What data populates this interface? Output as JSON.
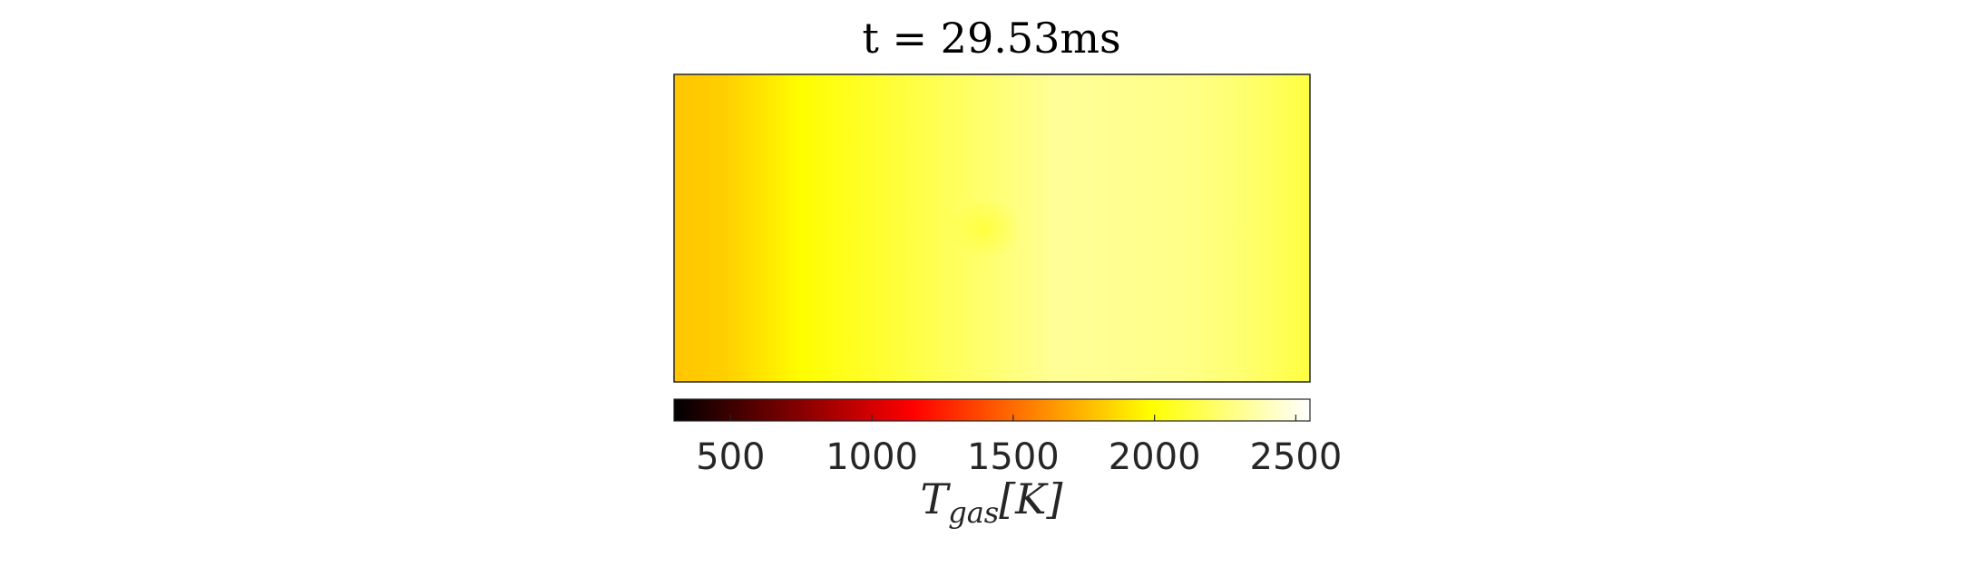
{
  "chart_data": {
    "type": "heatmap",
    "title": "t = 29.53ms",
    "colormap": "hot",
    "colorbar": {
      "orientation": "horizontal",
      "clim": [
        300,
        2550
      ],
      "ticks": [
        500,
        1000,
        1500,
        2000,
        2500
      ],
      "tick_labels": [
        "500",
        "1000",
        "1500",
        "2000",
        "2500"
      ],
      "label": {
        "main": "T",
        "subscript": "gas",
        "unit": "[K]"
      }
    },
    "field_profile": {
      "x_fraction": [
        0.0,
        0.08,
        0.2,
        0.4,
        0.6,
        0.8,
        0.9,
        1.0
      ],
      "temperature_K": [
        1800,
        1830,
        1980,
        2160,
        2320,
        2290,
        2230,
        2130
      ]
    },
    "hot_spot": {
      "x_fraction": 0.49,
      "y_fraction": 0.5,
      "temperature_K": 2050
    },
    "colors": {
      "frame": "#262626",
      "background": "#ffffff"
    }
  }
}
